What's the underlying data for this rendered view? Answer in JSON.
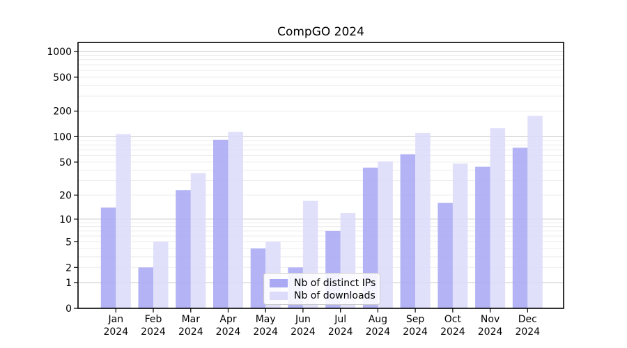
{
  "chart_data": {
    "type": "bar",
    "title": "CompGO 2024",
    "categories": [
      "Jan",
      "Feb",
      "Mar",
      "Apr",
      "May",
      "Jun",
      "Jul",
      "Aug",
      "Sep",
      "Oct",
      "Nov",
      "Dec"
    ],
    "x_tick_second_line": "2024",
    "series": [
      {
        "name": "Nb of distinct IPs",
        "color": "#a9a9f4",
        "values": [
          14,
          2,
          23,
          92,
          4,
          2,
          7,
          43,
          62,
          16,
          44,
          74
        ]
      },
      {
        "name": "Nb of downloads",
        "color": "#dcdcfa",
        "values": [
          107,
          5,
          37,
          114,
          5,
          17,
          12,
          51,
          111,
          48,
          126,
          176
        ]
      }
    ],
    "y_scale": "log10(value+1)",
    "y_ticks": [
      0,
      1,
      2,
      5,
      10,
      20,
      50,
      100,
      200,
      500,
      1000
    ],
    "ylim": [
      0,
      1000
    ],
    "grid": true,
    "legend_position": "lower-center-inside"
  }
}
